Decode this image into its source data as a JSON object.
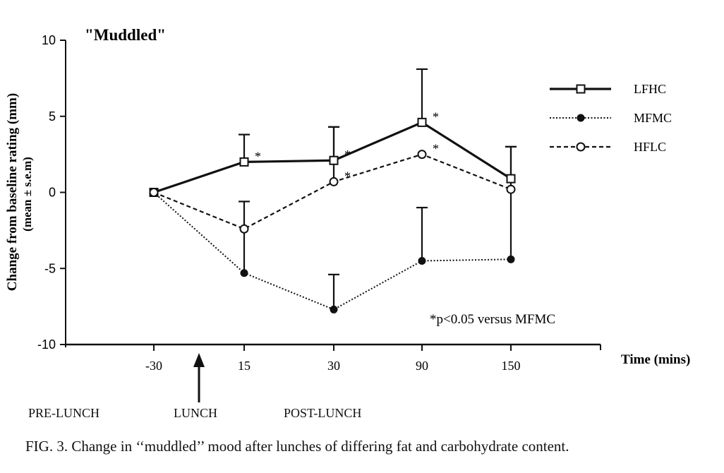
{
  "chart_data": {
    "type": "line",
    "title": "\"Muddled\"",
    "ylabel": "Change from baseline rating (mm)",
    "ylabel_sub": "(mean ± s.e.m)",
    "xlabel": "Time (mins)",
    "categories": [
      "-30",
      "15",
      "30",
      "90",
      "150"
    ],
    "ylim": [
      -10,
      10
    ],
    "yticks": [
      "10",
      "5",
      "0",
      "-5",
      "-10"
    ],
    "ytick_values": [
      10,
      5,
      0,
      -5,
      -10
    ],
    "series": [
      {
        "name": "LFHC",
        "style": "solid",
        "marker": "open-square",
        "values": [
          0,
          2.0,
          2.1,
          4.6,
          0.9
        ],
        "errors": [
          0,
          1.8,
          2.2,
          3.5,
          2.1
        ],
        "sig": [
          "",
          "*",
          "*",
          "*",
          ""
        ]
      },
      {
        "name": "MFMC",
        "style": "dotted",
        "marker": "filled-circle",
        "values": [
          0,
          -5.3,
          -7.7,
          -4.5,
          -4.4
        ],
        "errors": [
          0,
          4.7,
          2.3,
          3.5,
          7.4
        ],
        "sig": [
          "",
          "",
          "",
          "",
          ""
        ]
      },
      {
        "name": "HFLC",
        "style": "dashed",
        "marker": "open-circle",
        "values": [
          0,
          -2.4,
          0.7,
          2.5,
          0.2
        ],
        "errors": [
          0,
          0,
          3.6,
          0,
          0
        ],
        "sig": [
          "",
          "",
          "*",
          "*",
          ""
        ]
      }
    ],
    "annotation": "*p<0.05 versus MFMC",
    "grid": false,
    "legend_position": "top-right"
  },
  "markers": {
    "arrow_label": "LUNCH",
    "phases": [
      "PRE-LUNCH",
      "LUNCH",
      "POST-LUNCH"
    ]
  },
  "caption": "FIG. 3. Change in ‘‘muddled’’ mood after lunches of differing fat and carbohydrate content."
}
